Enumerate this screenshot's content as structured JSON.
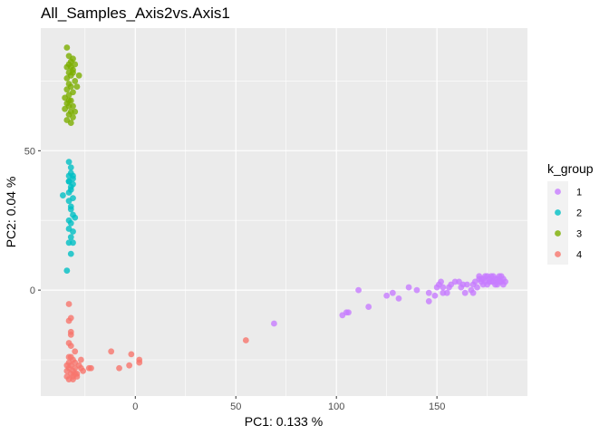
{
  "chart_data": {
    "type": "scatter",
    "title": "All_Samples_Axis2vs.Axis1",
    "xlabel": "PC1: 0.133 %",
    "ylabel": "PC2: 0.04 %",
    "xlim": [
      -47,
      195
    ],
    "ylim": [
      -38,
      94
    ],
    "xticks": [
      0,
      50,
      100,
      150
    ],
    "yticks": [
      0,
      50
    ],
    "grid": true,
    "panel_background": "#ebebeb",
    "legend": {
      "title": "k_group",
      "placement": "right"
    },
    "series": [
      {
        "name": "1",
        "color": "#c77cff",
        "points": [
          [
            69,
            -12
          ],
          [
            103,
            -9
          ],
          [
            105,
            -8
          ],
          [
            106,
            -8
          ],
          [
            111,
            0
          ],
          [
            116,
            -6
          ],
          [
            125,
            -2
          ],
          [
            128,
            -1
          ],
          [
            131,
            -3
          ],
          [
            136,
            1
          ],
          [
            140,
            0
          ],
          [
            146,
            -1
          ],
          [
            146,
            -4
          ],
          [
            149,
            -2
          ],
          [
            150,
            1
          ],
          [
            151,
            2
          ],
          [
            152,
            3
          ],
          [
            153,
            1
          ],
          [
            153,
            -1
          ],
          [
            155,
            -1
          ],
          [
            156,
            1
          ],
          [
            157,
            2
          ],
          [
            159,
            3
          ],
          [
            161,
            3
          ],
          [
            162,
            1
          ],
          [
            163,
            2
          ],
          [
            164,
            -1
          ],
          [
            165,
            2
          ],
          [
            167,
            0
          ],
          [
            168,
            -1
          ],
          [
            168,
            2
          ],
          [
            169,
            3
          ],
          [
            170,
            1
          ],
          [
            171,
            4
          ],
          [
            172,
            3
          ],
          [
            173,
            2
          ],
          [
            174,
            5
          ],
          [
            175,
            2
          ],
          [
            176,
            4
          ],
          [
            177,
            5
          ],
          [
            178,
            3
          ],
          [
            179,
            2
          ],
          [
            180,
            4
          ],
          [
            181,
            5
          ],
          [
            182,
            3
          ],
          [
            183,
            4
          ],
          [
            184,
            3
          ],
          [
            182,
            5
          ],
          [
            180,
            2
          ],
          [
            179,
            4
          ],
          [
            178,
            5
          ],
          [
            176,
            3
          ],
          [
            175,
            5
          ],
          [
            174,
            3
          ],
          [
            173,
            4
          ],
          [
            172,
            4
          ],
          [
            171,
            5
          ],
          [
            177,
            3
          ],
          [
            183,
            2
          ],
          [
            181,
            3
          ]
        ]
      },
      {
        "name": "2",
        "color": "#00bfc4",
        "points": [
          [
            -33,
            46
          ],
          [
            -32,
            44
          ],
          [
            -32,
            42
          ],
          [
            -33,
            41
          ],
          [
            -31,
            40
          ],
          [
            -33,
            39
          ],
          [
            -32,
            37
          ],
          [
            -31,
            38
          ],
          [
            -32,
            36
          ],
          [
            -33,
            35
          ],
          [
            -36,
            34
          ],
          [
            -31,
            33
          ],
          [
            -33,
            32
          ],
          [
            -32,
            30
          ],
          [
            -32,
            29
          ],
          [
            -31,
            27
          ],
          [
            -30,
            26
          ],
          [
            -33,
            25
          ],
          [
            -32,
            24
          ],
          [
            -33,
            22
          ],
          [
            -31,
            21
          ],
          [
            -32,
            19
          ],
          [
            -33,
            17
          ],
          [
            -31,
            17
          ],
          [
            -32,
            13
          ],
          [
            -34,
            7
          ],
          [
            -33,
            39
          ],
          [
            -31,
            41
          ]
        ]
      },
      {
        "name": "3",
        "color": "#7cae00",
        "points": [
          [
            -34,
            87
          ],
          [
            -33,
            84
          ],
          [
            -31,
            83
          ],
          [
            -33,
            81
          ],
          [
            -34,
            80
          ],
          [
            -32,
            80
          ],
          [
            -31,
            79
          ],
          [
            -33,
            78
          ],
          [
            -31,
            78
          ],
          [
            -32,
            77
          ],
          [
            -28,
            77
          ],
          [
            -34,
            76
          ],
          [
            -30,
            75
          ],
          [
            -33,
            74
          ],
          [
            -32,
            73
          ],
          [
            -34,
            72
          ],
          [
            -31,
            71
          ],
          [
            -29,
            73
          ],
          [
            -33,
            70
          ],
          [
            -35,
            69
          ],
          [
            -32,
            68
          ],
          [
            -34,
            67
          ],
          [
            -31,
            66
          ],
          [
            -33,
            66
          ],
          [
            -35,
            65
          ],
          [
            -32,
            64
          ],
          [
            -33,
            63
          ],
          [
            -31,
            62
          ],
          [
            -34,
            61
          ],
          [
            -32,
            60
          ],
          [
            -30,
            64
          ],
          [
            -33,
            68
          ],
          [
            -32,
            82
          ],
          [
            -30,
            81
          ]
        ]
      },
      {
        "name": "4",
        "color": "#f8766d",
        "points": [
          [
            55,
            -18
          ],
          [
            2,
            -25
          ],
          [
            2,
            -26
          ],
          [
            -2,
            -23
          ],
          [
            -3,
            -27
          ],
          [
            -8,
            -28
          ],
          [
            -12,
            -22
          ],
          [
            -22,
            -28
          ],
          [
            -23,
            -28
          ],
          [
            -26,
            -29
          ],
          [
            -27,
            -25
          ],
          [
            -28,
            -27
          ],
          [
            -29,
            -30
          ],
          [
            -30,
            -26
          ],
          [
            -30,
            -28
          ],
          [
            -31,
            -25
          ],
          [
            -31,
            -29
          ],
          [
            -32,
            -27
          ],
          [
            -32,
            -30
          ],
          [
            -33,
            -26
          ],
          [
            -33,
            -28
          ],
          [
            -34,
            -29
          ],
          [
            -34,
            -31
          ],
          [
            -33,
            -24
          ],
          [
            -32,
            -20
          ],
          [
            -33,
            -19
          ],
          [
            -32,
            -15
          ],
          [
            -33,
            -11
          ],
          [
            -32,
            -10
          ],
          [
            -33,
            -5
          ],
          [
            -32,
            -16
          ],
          [
            -29,
            -31
          ],
          [
            -31,
            -31
          ],
          [
            -30,
            -22
          ],
          [
            -27,
            -28
          ],
          [
            -34,
            -27
          ],
          [
            -33,
            -32
          ],
          [
            -31,
            -32
          ],
          [
            -32,
            -24
          ],
          [
            -30,
            -30
          ]
        ]
      }
    ]
  }
}
